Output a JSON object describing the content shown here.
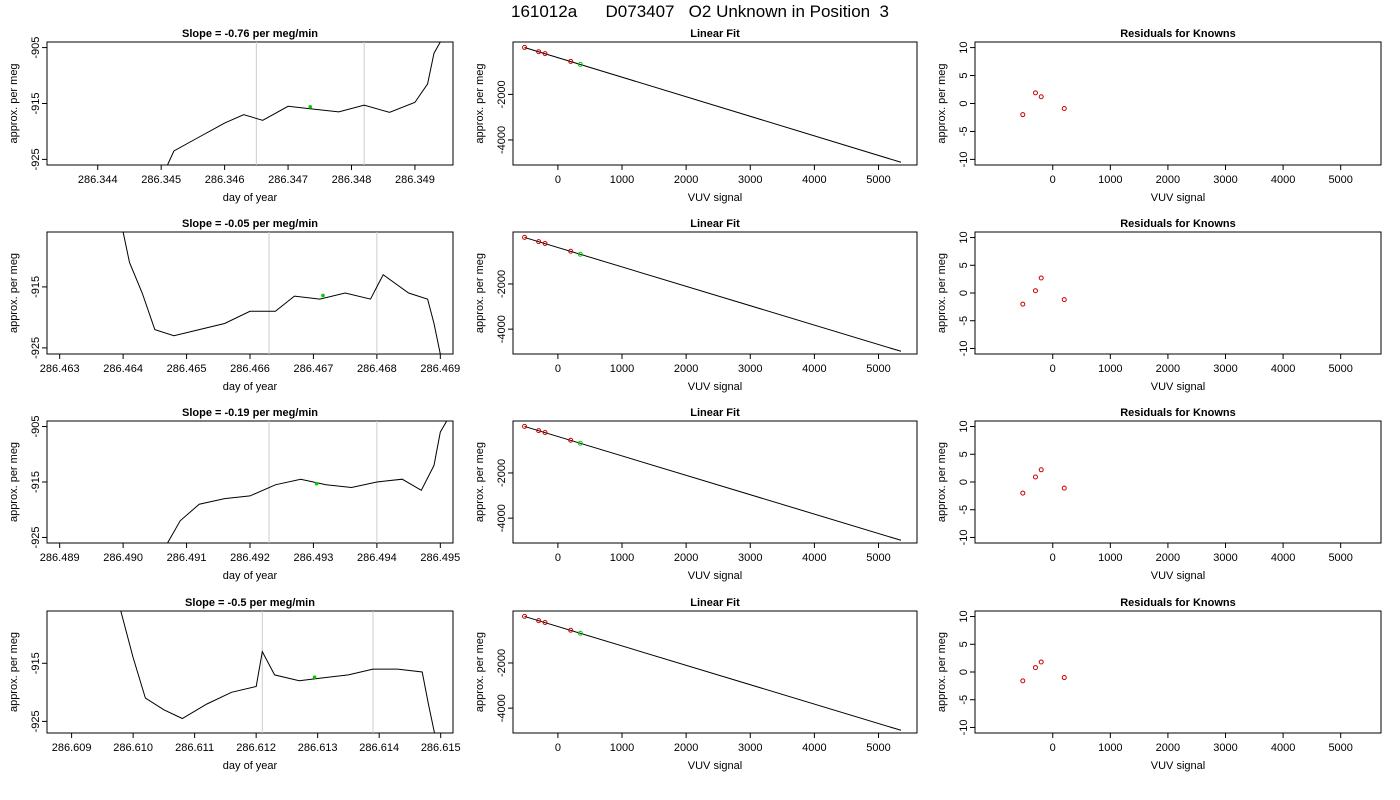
{
  "page_title": "161012a      D073407   O2 Unknown in Position  3",
  "chart_data": [
    {
      "type": "line",
      "title": "Slope =  -0.76  per meg/min",
      "xlabel": "day of year",
      "ylabel": "approx. per meg",
      "xlim": [
        286.3432,
        286.3496
      ],
      "ylim": [
        -926,
        -904
      ],
      "xticks": [
        286.344,
        286.345,
        286.346,
        286.347,
        286.348,
        286.349
      ],
      "xtick_labels": [
        "286.344",
        "286.345",
        "286.346",
        "286.347",
        "286.348",
        "286.349"
      ],
      "yticks": [
        -925,
        -915,
        -905
      ],
      "ytick_labels": [
        "-925",
        "-915",
        "-905"
      ],
      "vlines": [
        286.3465,
        286.3482
      ],
      "highlight": {
        "x": 286.34735,
        "y": -915.6
      },
      "series": [
        {
          "values": [
            [
              286.3451,
              -926
            ],
            [
              286.3452,
              -923.5
            ],
            [
              286.3456,
              -921
            ],
            [
              286.346,
              -918.5
            ],
            [
              286.3463,
              -917
            ],
            [
              286.3466,
              -918
            ],
            [
              286.347,
              -915.5
            ],
            [
              286.3474,
              -916
            ],
            [
              286.3478,
              -916.5
            ],
            [
              286.3482,
              -915.3
            ],
            [
              286.3486,
              -916.6
            ],
            [
              286.349,
              -914.8
            ],
            [
              286.3492,
              -911.5
            ],
            [
              286.3493,
              -906
            ],
            [
              286.3494,
              -904
            ]
          ]
        }
      ],
      "grid": false,
      "legend": "none"
    },
    {
      "type": "scatter",
      "title": "Linear Fit",
      "xlabel": "VUV signal",
      "ylabel": "approx. per meg",
      "xlim": [
        -700,
        5600
      ],
      "ylim": [
        -5100,
        300
      ],
      "xticks": [
        0,
        1000,
        2000,
        3000,
        4000,
        5000
      ],
      "xtick_labels": [
        "0",
        "1000",
        "2000",
        "3000",
        "4000",
        "5000"
      ],
      "yticks": [
        -4000,
        -2000
      ],
      "ytick_labels": [
        "-4000",
        "-2000"
      ],
      "line": [
        [
          -520,
          60
        ],
        [
          5350,
          -4980
        ]
      ],
      "series": [
        {
          "values": [
            [
              -520,
              62
            ],
            [
              -300,
              -126
            ],
            [
              -200,
              -210
            ],
            [
              200,
              -553
            ]
          ]
        },
        {
          "values": [
            [
              350,
              -683
            ]
          ]
        }
      ],
      "grid": false,
      "legend": "none"
    },
    {
      "type": "scatter",
      "title": "Residuals for Knowns",
      "xlabel": "VUV signal",
      "ylabel": "approx. per meg",
      "xlim": [
        -1350,
        5700
      ],
      "ylim": [
        -11,
        11
      ],
      "xticks": [
        0,
        1000,
        2000,
        3000,
        4000,
        5000
      ],
      "xtick_labels": [
        "0",
        "1000",
        "2000",
        "3000",
        "4000",
        "5000"
      ],
      "yticks": [
        -10,
        -5,
        0,
        5,
        10
      ],
      "ytick_labels": [
        "-10",
        "-5",
        "0",
        "5",
        "10"
      ],
      "series": [
        {
          "values": [
            [
              -520,
              -2.0
            ],
            [
              -300,
              1.9
            ],
            [
              -200,
              1.2
            ],
            [
              200,
              -0.9
            ]
          ]
        }
      ],
      "grid": false,
      "legend": "none"
    },
    {
      "type": "line",
      "title": "Slope =  -0.05  per meg/min",
      "xlabel": "day of year",
      "ylabel": "approx. per meg",
      "xlim": [
        286.4628,
        286.4692
      ],
      "ylim": [
        -926,
        -906
      ],
      "xticks": [
        286.463,
        286.464,
        286.465,
        286.466,
        286.467,
        286.468,
        286.469
      ],
      "xtick_labels": [
        "286.463",
        "286.464",
        "286.465",
        "286.466",
        "286.467",
        "286.468",
        "286.469"
      ],
      "yticks": [
        -925,
        -915
      ],
      "ytick_labels": [
        "-925",
        "-915"
      ],
      "vlines": [
        286.4663,
        286.468
      ],
      "highlight": {
        "x": 286.46715,
        "y": -916.4
      },
      "series": [
        {
          "values": [
            [
              286.464,
              -906
            ],
            [
              286.4641,
              -911
            ],
            [
              286.4643,
              -916
            ],
            [
              286.4645,
              -922
            ],
            [
              286.4648,
              -923
            ],
            [
              286.4652,
              -922
            ],
            [
              286.4656,
              -921
            ],
            [
              286.466,
              -919
            ],
            [
              286.4664,
              -919
            ],
            [
              286.4667,
              -916.5
            ],
            [
              286.4671,
              -917
            ],
            [
              286.4675,
              -916
            ],
            [
              286.4679,
              -917
            ],
            [
              286.4681,
              -913
            ],
            [
              286.4685,
              -916
            ],
            [
              286.4688,
              -917
            ],
            [
              286.4689,
              -921
            ],
            [
              286.469,
              -926
            ]
          ]
        }
      ],
      "grid": false,
      "legend": "none"
    },
    {
      "type": "scatter",
      "title": "Linear Fit",
      "xlabel": "VUV signal",
      "ylabel": "approx. per meg",
      "xlim": [
        -700,
        5600
      ],
      "ylim": [
        -5100,
        300
      ],
      "xticks": [
        0,
        1000,
        2000,
        3000,
        4000,
        5000
      ],
      "xtick_labels": [
        "0",
        "1000",
        "2000",
        "3000",
        "4000",
        "5000"
      ],
      "yticks": [
        -4000,
        -2000
      ],
      "ytick_labels": [
        "-4000",
        "-2000"
      ],
      "line": [
        [
          -520,
          60
        ],
        [
          5350,
          -4980
        ]
      ],
      "series": [
        {
          "values": [
            [
              -520,
              62
            ],
            [
              -300,
              -126
            ],
            [
              -200,
              -210
            ],
            [
              200,
              -553
            ]
          ]
        },
        {
          "values": [
            [
              350,
              -683
            ]
          ]
        }
      ],
      "grid": false,
      "legend": "none"
    },
    {
      "type": "scatter",
      "title": "Residuals for Knowns",
      "xlabel": "VUV signal",
      "ylabel": "approx. per meg",
      "xlim": [
        -1350,
        5700
      ],
      "ylim": [
        -11,
        11
      ],
      "xticks": [
        0,
        1000,
        2000,
        3000,
        4000,
        5000
      ],
      "xtick_labels": [
        "0",
        "1000",
        "2000",
        "3000",
        "4000",
        "5000"
      ],
      "yticks": [
        -10,
        -5,
        0,
        5,
        10
      ],
      "ytick_labels": [
        "-10",
        "-5",
        "0",
        "5",
        "10"
      ],
      "series": [
        {
          "values": [
            [
              -520,
              -2.0
            ],
            [
              -300,
              0.4
            ],
            [
              -200,
              2.7
            ],
            [
              200,
              -1.2
            ]
          ]
        }
      ],
      "grid": false,
      "legend": "none"
    },
    {
      "type": "line",
      "title": "Slope =  -0.19  per meg/min",
      "xlabel": "day of year",
      "ylabel": "approx. per meg",
      "xlim": [
        286.4888,
        286.4952
      ],
      "ylim": [
        -926,
        -904
      ],
      "xticks": [
        286.489,
        286.49,
        286.491,
        286.492,
        286.493,
        286.494,
        286.495
      ],
      "xtick_labels": [
        "286.489",
        "286.490",
        "286.491",
        "286.492",
        "286.493",
        "286.494",
        "286.495"
      ],
      "yticks": [
        -925,
        -915,
        -905
      ],
      "ytick_labels": [
        "-925",
        "-915",
        "-905"
      ],
      "vlines": [
        286.4923,
        286.494
      ],
      "highlight": {
        "x": 286.49305,
        "y": -915.3
      },
      "series": [
        {
          "values": [
            [
              286.4907,
              -926
            ],
            [
              286.4909,
              -922
            ],
            [
              286.4912,
              -919
            ],
            [
              286.4916,
              -918
            ],
            [
              286.492,
              -917.5
            ],
            [
              286.4924,
              -915.5
            ],
            [
              286.4928,
              -914.5
            ],
            [
              286.4932,
              -915.5
            ],
            [
              286.4936,
              -916
            ],
            [
              286.494,
              -915
            ],
            [
              286.4944,
              -914.5
            ],
            [
              286.4947,
              -916.5
            ],
            [
              286.4949,
              -912
            ],
            [
              286.495,
              -906
            ],
            [
              286.4951,
              -904
            ]
          ]
        }
      ],
      "grid": false,
      "legend": "none"
    },
    {
      "type": "scatter",
      "title": "Linear Fit",
      "xlabel": "VUV signal",
      "ylabel": "approx. per meg",
      "xlim": [
        -700,
        5600
      ],
      "ylim": [
        -5100,
        300
      ],
      "xticks": [
        0,
        1000,
        2000,
        3000,
        4000,
        5000
      ],
      "xtick_labels": [
        "0",
        "1000",
        "2000",
        "3000",
        "4000",
        "5000"
      ],
      "yticks": [
        -4000,
        -2000
      ],
      "ytick_labels": [
        "-4000",
        "-2000"
      ],
      "line": [
        [
          -520,
          60
        ],
        [
          5350,
          -4980
        ]
      ],
      "series": [
        {
          "values": [
            [
              -520,
              62
            ],
            [
              -300,
              -126
            ],
            [
              -200,
              -210
            ],
            [
              200,
              -553
            ]
          ]
        },
        {
          "values": [
            [
              350,
              -683
            ]
          ]
        }
      ],
      "grid": false,
      "legend": "none"
    },
    {
      "type": "scatter",
      "title": "Residuals for Knowns",
      "xlabel": "VUV signal",
      "ylabel": "approx. per meg",
      "xlim": [
        -1350,
        5700
      ],
      "ylim": [
        -11,
        11
      ],
      "xticks": [
        0,
        1000,
        2000,
        3000,
        4000,
        5000
      ],
      "xtick_labels": [
        "0",
        "1000",
        "2000",
        "3000",
        "4000",
        "5000"
      ],
      "yticks": [
        -10,
        -5,
        0,
        5,
        10
      ],
      "ytick_labels": [
        "-10",
        "-5",
        "0",
        "5",
        "10"
      ],
      "series": [
        {
          "values": [
            [
              -520,
              -2.0
            ],
            [
              -300,
              0.9
            ],
            [
              -200,
              2.2
            ],
            [
              200,
              -1.1
            ]
          ]
        }
      ],
      "grid": false,
      "legend": "none"
    },
    {
      "type": "line",
      "title": "Slope =  -0.5  per meg/min",
      "xlabel": "day of year",
      "ylabel": "approx. per meg",
      "xlim": [
        286.6086,
        286.6152
      ],
      "ylim": [
        -927,
        -906
      ],
      "xticks": [
        286.609,
        286.61,
        286.611,
        286.612,
        286.613,
        286.614,
        286.615
      ],
      "xtick_labels": [
        "286.609",
        "286.610",
        "286.611",
        "286.612",
        "286.613",
        "286.614",
        "286.615"
      ],
      "yticks": [
        -925,
        -915
      ],
      "ytick_labels": [
        "-925",
        "-915"
      ],
      "vlines": [
        286.6121,
        286.6139
      ],
      "highlight": {
        "x": 286.61295,
        "y": -917.4
      },
      "series": [
        {
          "values": [
            [
              286.6098,
              -906
            ],
            [
              286.61,
              -914
            ],
            [
              286.6102,
              -921
            ],
            [
              286.6105,
              -923
            ],
            [
              286.6108,
              -924.5
            ],
            [
              286.6112,
              -922
            ],
            [
              286.6116,
              -920
            ],
            [
              286.612,
              -919
            ],
            [
              286.6121,
              -913
            ],
            [
              286.6123,
              -917
            ],
            [
              286.6127,
              -918
            ],
            [
              286.6131,
              -917.5
            ],
            [
              286.6135,
              -917
            ],
            [
              286.6139,
              -916
            ],
            [
              286.6143,
              -916
            ],
            [
              286.6147,
              -916.5
            ],
            [
              286.6148,
              -922
            ],
            [
              286.6149,
              -927
            ]
          ]
        }
      ],
      "grid": false,
      "legend": "none"
    },
    {
      "type": "scatter",
      "title": "Linear Fit",
      "xlabel": "VUV signal",
      "ylabel": "approx. per meg",
      "xlim": [
        -700,
        5600
      ],
      "ylim": [
        -5100,
        300
      ],
      "xticks": [
        0,
        1000,
        2000,
        3000,
        4000,
        5000
      ],
      "xtick_labels": [
        "0",
        "1000",
        "2000",
        "3000",
        "4000",
        "5000"
      ],
      "yticks": [
        -4000,
        -2000
      ],
      "ytick_labels": [
        "-4000",
        "-2000"
      ],
      "line": [
        [
          -520,
          60
        ],
        [
          5350,
          -4980
        ]
      ],
      "series": [
        {
          "values": [
            [
              -520,
              62
            ],
            [
              -300,
              -126
            ],
            [
              -200,
              -210
            ],
            [
              200,
              -553
            ]
          ]
        },
        {
          "values": [
            [
              350,
              -683
            ]
          ]
        }
      ],
      "grid": false,
      "legend": "none"
    },
    {
      "type": "scatter",
      "title": "Residuals for Knowns",
      "xlabel": "VUV signal",
      "ylabel": "approx. per meg",
      "xlim": [
        -1350,
        5700
      ],
      "ylim": [
        -11,
        11
      ],
      "xticks": [
        0,
        1000,
        2000,
        3000,
        4000,
        5000
      ],
      "xtick_labels": [
        "0",
        "1000",
        "2000",
        "3000",
        "4000",
        "5000"
      ],
      "yticks": [
        -10,
        -5,
        0,
        5,
        10
      ],
      "ytick_labels": [
        "-10",
        "-5",
        "0",
        "5",
        "10"
      ],
      "series": [
        {
          "values": [
            [
              -520,
              -1.6
            ],
            [
              -300,
              0.8
            ],
            [
              -200,
              1.8
            ],
            [
              200,
              -1.0
            ]
          ]
        }
      ],
      "grid": false,
      "legend": "none"
    }
  ],
  "colors": {
    "axis": "#000000",
    "data_line": "#000000",
    "vline": "#cccccc",
    "known_point": "#cc0000",
    "unknown_point": "#00cc00"
  }
}
